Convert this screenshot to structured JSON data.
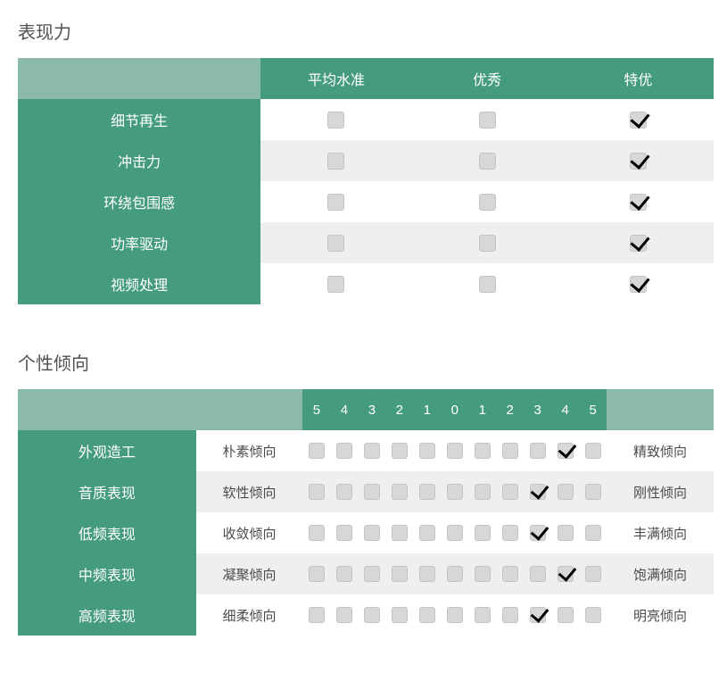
{
  "colors": {
    "header_light": "#8bbaa8",
    "header_dark": "#459b7e",
    "row_alt": "#efefef",
    "row_base": "#ffffff",
    "text_title": "#525252",
    "text_label": "#4b4b4b",
    "checkbox_bg": "#d7d7d7",
    "checkbox_border": "#c4c4c4",
    "checkmark": "#000000"
  },
  "typography": {
    "title_fontsize": 20,
    "header_fontsize": 16,
    "scale_header_fontsize": 15,
    "label_fontsize": 15
  },
  "performance": {
    "title": "表现力",
    "columns": [
      "平均水准",
      "优秀",
      "特优"
    ],
    "rows": [
      {
        "label": "细节再生",
        "values": [
          false,
          false,
          true
        ]
      },
      {
        "label": "冲击力",
        "values": [
          false,
          false,
          true
        ]
      },
      {
        "label": "环绕包围感",
        "values": [
          false,
          false,
          true
        ]
      },
      {
        "label": "功率驱动",
        "values": [
          false,
          false,
          true
        ]
      },
      {
        "label": "视频处理",
        "values": [
          false,
          false,
          true
        ]
      }
    ]
  },
  "tendency": {
    "title": "个性倾向",
    "scale": [
      "5",
      "4",
      "3",
      "2",
      "1",
      "0",
      "1",
      "2",
      "3",
      "4",
      "5"
    ],
    "rows": [
      {
        "label": "外观造工",
        "left": "朴素倾向",
        "right": "精致倾向",
        "checked_index": 9
      },
      {
        "label": "音质表现",
        "left": "软性倾向",
        "right": "刚性倾向",
        "checked_index": 8
      },
      {
        "label": "低频表现",
        "left": "收敛倾向",
        "right": "丰满倾向",
        "checked_index": 8
      },
      {
        "label": "中频表现",
        "left": "凝聚倾向",
        "right": "饱满倾向",
        "checked_index": 9
      },
      {
        "label": "高频表现",
        "left": "细柔倾向",
        "right": "明亮倾向",
        "checked_index": 8
      }
    ]
  }
}
